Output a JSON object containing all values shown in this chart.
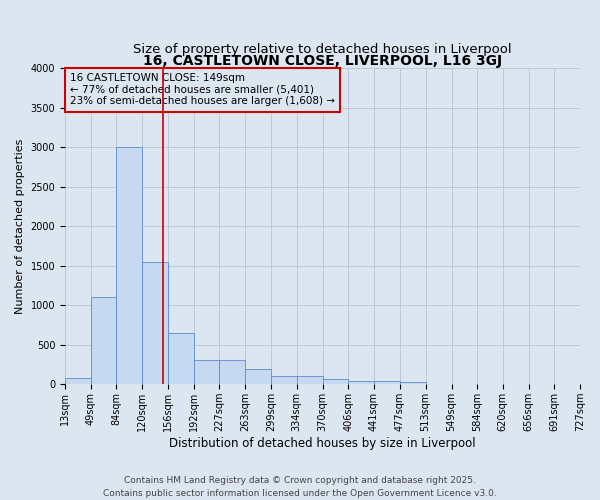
{
  "title": "16, CASTLETOWN CLOSE, LIVERPOOL, L16 3GJ",
  "subtitle": "Size of property relative to detached houses in Liverpool",
  "xlabel": "Distribution of detached houses by size in Liverpool",
  "ylabel": "Number of detached properties",
  "bin_edges": [
    13,
    49,
    84,
    120,
    156,
    192,
    227,
    263,
    299,
    334,
    370,
    406,
    441,
    477,
    513,
    549,
    584,
    620,
    656,
    691,
    727
  ],
  "bar_heights": [
    75,
    1100,
    3000,
    1550,
    650,
    310,
    310,
    200,
    110,
    100,
    65,
    45,
    40,
    35,
    8,
    3,
    2,
    1,
    1,
    0
  ],
  "bar_color": "#c6d9f0",
  "bar_edge_color": "#5b8bc9",
  "grid_color": "#c0c8d8",
  "background_color": "#dce6f1",
  "property_line_x": 149,
  "property_line_color": "#cc0000",
  "annotation_text": "16 CASTLETOWN CLOSE: 149sqm\n← 77% of detached houses are smaller (5,401)\n23% of semi-detached houses are larger (1,608) →",
  "ylim": [
    0,
    4000
  ],
  "yticks": [
    0,
    500,
    1000,
    1500,
    2000,
    2500,
    3000,
    3500,
    4000
  ],
  "footer_line1": "Contains HM Land Registry data © Crown copyright and database right 2025.",
  "footer_line2": "Contains public sector information licensed under the Open Government Licence v3.0.",
  "title_fontsize": 10,
  "subtitle_fontsize": 9.5,
  "xlabel_fontsize": 8.5,
  "ylabel_fontsize": 8,
  "tick_fontsize": 7,
  "annotation_fontsize": 7.5,
  "footer_fontsize": 6.5
}
